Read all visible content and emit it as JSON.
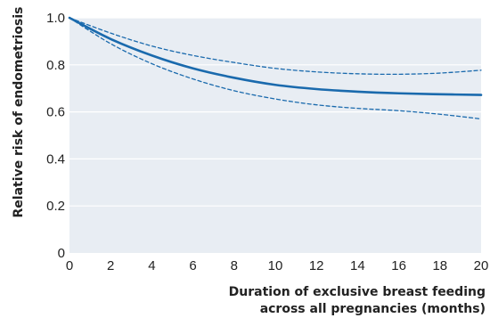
{
  "chart_data": {
    "type": "line",
    "title": "",
    "xlabel": [
      "Duration of exclusive breast feeding",
      "across all pregnancies (months)"
    ],
    "ylabel": "Relative risk of endometriosis",
    "xlim": [
      0,
      20
    ],
    "ylim": [
      0,
      1.0
    ],
    "xticks": [
      "0",
      "2",
      "4",
      "6",
      "8",
      "10",
      "12",
      "14",
      "16",
      "18",
      "20"
    ],
    "yticks": [
      "0",
      "0.2",
      "0.4",
      "0.6",
      "0.8",
      "1.0"
    ],
    "grid": "horizontal",
    "series": [
      {
        "style": "solid",
        "x": [
          0,
          2,
          4,
          6,
          8,
          10,
          12,
          14,
          16,
          18,
          20
        ],
        "y": [
          1.0,
          0.91,
          0.84,
          0.785,
          0.745,
          0.715,
          0.697,
          0.686,
          0.679,
          0.675,
          0.672
        ]
      },
      {
        "style": "dashed",
        "x": [
          0,
          2,
          4,
          6,
          8,
          10,
          12,
          14,
          16,
          18,
          20
        ],
        "y": [
          1.0,
          0.935,
          0.88,
          0.84,
          0.81,
          0.785,
          0.77,
          0.762,
          0.76,
          0.765,
          0.777
        ]
      },
      {
        "style": "dashed",
        "x": [
          0,
          2,
          4,
          6,
          8,
          10,
          12,
          14,
          16,
          18,
          20
        ],
        "y": [
          1.0,
          0.89,
          0.805,
          0.74,
          0.69,
          0.655,
          0.63,
          0.615,
          0.605,
          0.59,
          0.57
        ]
      }
    ],
    "colors": {
      "plot_background": "#e8edf3",
      "gridline": "#ffffff",
      "line": "#1a6aad",
      "text": "#222222"
    }
  }
}
